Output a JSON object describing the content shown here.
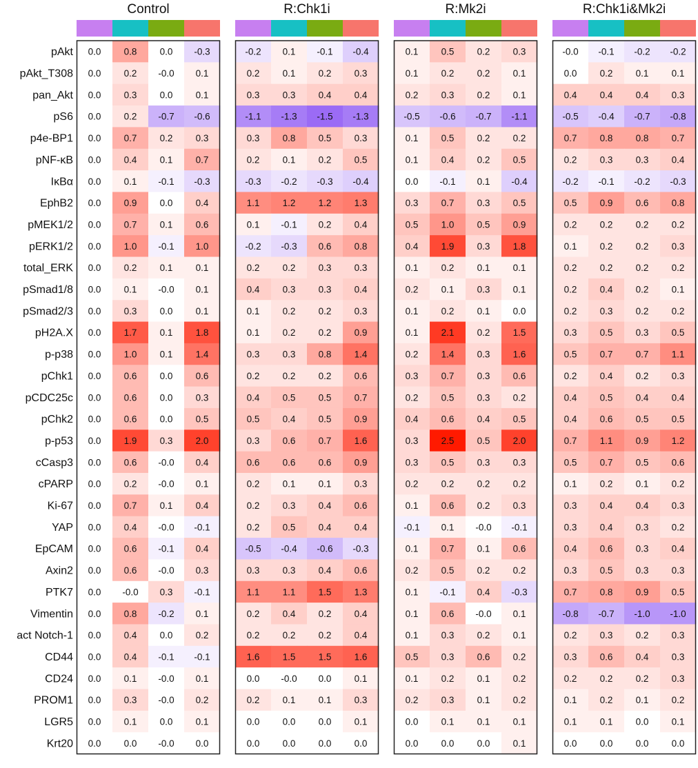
{
  "chart_data": {
    "type": "heatmap",
    "colors": {
      "condition_bar": [
        "#c77ff0",
        "#17c0c4",
        "#7aab12",
        "#f7756c"
      ],
      "negative_max": "#9b6bf5",
      "zero": "#ffffff",
      "positive_max": "#ff1a00",
      "border": "#222222"
    },
    "color_scale": {
      "min": -1.5,
      "max": 2.5
    },
    "rows": [
      "pAkt",
      "pAkt_T308",
      "pan_Akt",
      "pS6",
      "p4e-BP1",
      "pNF-κB",
      "IκBα",
      "EphB2",
      "pMEK1/2",
      "pERK1/2",
      "total_ERK",
      "pSmad1/8",
      "pSmad2/3",
      "pH2A.X",
      "p-p38",
      "pChk1",
      "pCDC25c",
      "pChk2",
      "p-p53",
      "cCasp3",
      "cPARP",
      "Ki-67",
      "YAP",
      "EpCAM",
      "Axin2",
      "PTK7",
      "Vimentin",
      "act Notch-1",
      "CD44",
      "CD24",
      "PROM1",
      "LGR5",
      "Krt20"
    ],
    "panels": [
      {
        "title": "Control",
        "values": [
          [
            "0.0",
            "0.8",
            "0.0",
            "-0.3"
          ],
          [
            "0.0",
            "0.2",
            "-0.0",
            "0.1"
          ],
          [
            "0.0",
            "0.3",
            "0.0",
            "0.1"
          ],
          [
            "0.0",
            "0.2",
            "-0.7",
            "-0.6"
          ],
          [
            "0.0",
            "0.7",
            "0.2",
            "0.3"
          ],
          [
            "0.0",
            "0.4",
            "0.1",
            "0.7"
          ],
          [
            "0.0",
            "0.1",
            "-0.1",
            "-0.3"
          ],
          [
            "0.0",
            "0.9",
            "0.0",
            "0.4"
          ],
          [
            "0.0",
            "0.7",
            "0.1",
            "0.6"
          ],
          [
            "0.0",
            "1.0",
            "-0.1",
            "1.0"
          ],
          [
            "0.0",
            "0.2",
            "0.1",
            "0.1"
          ],
          [
            "0.0",
            "0.1",
            "-0.0",
            "0.1"
          ],
          [
            "0.0",
            "0.3",
            "0.0",
            "0.1"
          ],
          [
            "0.0",
            "1.7",
            "0.1",
            "1.8"
          ],
          [
            "0.0",
            "1.0",
            "0.1",
            "1.4"
          ],
          [
            "0.0",
            "0.6",
            "0.0",
            "0.6"
          ],
          [
            "0.0",
            "0.6",
            "0.0",
            "0.3"
          ],
          [
            "0.0",
            "0.6",
            "0.0",
            "0.5"
          ],
          [
            "0.0",
            "1.9",
            "0.3",
            "2.0"
          ],
          [
            "0.0",
            "0.6",
            "-0.0",
            "0.4"
          ],
          [
            "0.0",
            "0.2",
            "-0.0",
            "0.1"
          ],
          [
            "0.0",
            "0.7",
            "0.1",
            "0.4"
          ],
          [
            "0.0",
            "0.4",
            "-0.0",
            "-0.1"
          ],
          [
            "0.0",
            "0.6",
            "-0.1",
            "0.4"
          ],
          [
            "0.0",
            "0.6",
            "-0.0",
            "0.3"
          ],
          [
            "0.0",
            "-0.0",
            "0.3",
            "-0.1"
          ],
          [
            "0.0",
            "0.8",
            "-0.2",
            "0.1"
          ],
          [
            "0.0",
            "0.4",
            "0.0",
            "0.2"
          ],
          [
            "0.0",
            "0.4",
            "-0.1",
            "-0.1"
          ],
          [
            "0.0",
            "0.1",
            "-0.0",
            "0.1"
          ],
          [
            "0.0",
            "0.3",
            "-0.0",
            "0.2"
          ],
          [
            "0.0",
            "0.1",
            "0.0",
            "0.1"
          ],
          [
            "0.0",
            "0.0",
            "-0.0",
            "0.0"
          ]
        ]
      },
      {
        "title": "R:Chk1i",
        "values": [
          [
            "-0.2",
            "0.1",
            "-0.1",
            "-0.4"
          ],
          [
            "0.2",
            "0.1",
            "0.2",
            "0.3"
          ],
          [
            "0.3",
            "0.3",
            "0.4",
            "0.4"
          ],
          [
            "-1.1",
            "-1.3",
            "-1.5",
            "-1.3"
          ],
          [
            "0.3",
            "0.8",
            "0.5",
            "0.3"
          ],
          [
            "0.2",
            "0.1",
            "0.2",
            "0.5"
          ],
          [
            "-0.3",
            "-0.2",
            "-0.3",
            "-0.4"
          ],
          [
            "1.1",
            "1.2",
            "1.2",
            "1.3"
          ],
          [
            "0.1",
            "-0.1",
            "0.2",
            "0.4"
          ],
          [
            "-0.2",
            "-0.3",
            "0.6",
            "0.8"
          ],
          [
            "0.2",
            "0.2",
            "0.3",
            "0.3"
          ],
          [
            "0.4",
            "0.3",
            "0.3",
            "0.4"
          ],
          [
            "0.1",
            "0.2",
            "0.2",
            "0.3"
          ],
          [
            "0.1",
            "0.2",
            "0.2",
            "0.9"
          ],
          [
            "0.3",
            "0.3",
            "0.8",
            "1.4"
          ],
          [
            "0.2",
            "0.2",
            "0.2",
            "0.6"
          ],
          [
            "0.4",
            "0.5",
            "0.5",
            "0.7"
          ],
          [
            "0.5",
            "0.4",
            "0.5",
            "0.9"
          ],
          [
            "0.3",
            "0.6",
            "0.7",
            "1.6"
          ],
          [
            "0.6",
            "0.6",
            "0.6",
            "0.9"
          ],
          [
            "0.2",
            "0.1",
            "0.1",
            "0.3"
          ],
          [
            "0.2",
            "0.3",
            "0.4",
            "0.6"
          ],
          [
            "0.2",
            "0.5",
            "0.4",
            "0.4"
          ],
          [
            "-0.5",
            "-0.4",
            "-0.6",
            "-0.3"
          ],
          [
            "0.3",
            "0.3",
            "0.4",
            "0.6"
          ],
          [
            "1.1",
            "1.1",
            "1.5",
            "1.3"
          ],
          [
            "0.2",
            "0.4",
            "0.2",
            "0.4"
          ],
          [
            "0.2",
            "0.2",
            "0.2",
            "0.4"
          ],
          [
            "1.6",
            "1.5",
            "1.5",
            "1.6"
          ],
          [
            "0.0",
            "-0.0",
            "0.0",
            "0.1"
          ],
          [
            "0.2",
            "0.1",
            "0.1",
            "0.3"
          ],
          [
            "0.0",
            "0.0",
            "0.0",
            "0.1"
          ],
          [
            "0.0",
            "0.0",
            "0.0",
            "0.0"
          ]
        ]
      },
      {
        "title": "R:Mk2i",
        "values": [
          [
            "0.1",
            "0.5",
            "0.2",
            "0.3"
          ],
          [
            "0.1",
            "0.2",
            "0.2",
            "0.1"
          ],
          [
            "0.2",
            "0.3",
            "0.2",
            "0.1"
          ],
          [
            "-0.5",
            "-0.6",
            "-0.7",
            "-1.1"
          ],
          [
            "0.1",
            "0.5",
            "0.2",
            "0.2"
          ],
          [
            "0.1",
            "0.4",
            "0.2",
            "0.5"
          ],
          [
            "0.0",
            "-0.1",
            "0.1",
            "-0.4"
          ],
          [
            "0.3",
            "0.7",
            "0.3",
            "0.5"
          ],
          [
            "0.5",
            "1.0",
            "0.5",
            "0.9"
          ],
          [
            "0.4",
            "1.9",
            "0.3",
            "1.8"
          ],
          [
            "0.1",
            "0.2",
            "0.1",
            "0.1"
          ],
          [
            "0.2",
            "0.1",
            "0.3",
            "0.1"
          ],
          [
            "0.1",
            "0.2",
            "0.1",
            "0.0"
          ],
          [
            "0.1",
            "2.1",
            "0.2",
            "1.5"
          ],
          [
            "0.2",
            "1.4",
            "0.3",
            "1.6"
          ],
          [
            "0.3",
            "0.7",
            "0.3",
            "0.6"
          ],
          [
            "0.2",
            "0.5",
            "0.3",
            "0.2"
          ],
          [
            "0.4",
            "0.6",
            "0.4",
            "0.5"
          ],
          [
            "0.3",
            "2.5",
            "0.5",
            "2.0"
          ],
          [
            "0.3",
            "0.5",
            "0.3",
            "0.3"
          ],
          [
            "0.2",
            "0.2",
            "0.2",
            "0.2"
          ],
          [
            "0.1",
            "0.6",
            "0.2",
            "0.3"
          ],
          [
            "-0.1",
            "0.1",
            "-0.0",
            "-0.1"
          ],
          [
            "0.1",
            "0.7",
            "0.1",
            "0.6"
          ],
          [
            "0.2",
            "0.5",
            "0.2",
            "0.2"
          ],
          [
            "0.1",
            "-0.1",
            "0.4",
            "-0.3"
          ],
          [
            "0.1",
            "0.6",
            "-0.0",
            "0.1"
          ],
          [
            "0.1",
            "0.3",
            "0.2",
            "0.1"
          ],
          [
            "0.5",
            "0.3",
            "0.6",
            "0.2"
          ],
          [
            "0.1",
            "0.2",
            "0.1",
            "0.2"
          ],
          [
            "0.2",
            "0.3",
            "0.1",
            "0.2"
          ],
          [
            "0.0",
            "0.1",
            "0.1",
            "0.1"
          ],
          [
            "0.0",
            "0.0",
            "0.0",
            "0.1"
          ]
        ]
      },
      {
        "title": "R:Chk1i&Mk2i",
        "values": [
          [
            "-0.0",
            "-0.1",
            "-0.2",
            "-0.2"
          ],
          [
            "0.0",
            "0.2",
            "0.1",
            "0.1"
          ],
          [
            "0.4",
            "0.4",
            "0.4",
            "0.3"
          ],
          [
            "-0.5",
            "-0.4",
            "-0.7",
            "-0.8"
          ],
          [
            "0.7",
            "0.8",
            "0.8",
            "0.7"
          ],
          [
            "0.2",
            "0.3",
            "0.3",
            "0.4"
          ],
          [
            "-0.2",
            "-0.1",
            "-0.2",
            "-0.3"
          ],
          [
            "0.5",
            "0.9",
            "0.6",
            "0.8"
          ],
          [
            "0.2",
            "0.2",
            "0.2",
            "0.2"
          ],
          [
            "0.1",
            "0.2",
            "0.2",
            "0.3"
          ],
          [
            "0.2",
            "0.2",
            "0.2",
            "0.2"
          ],
          [
            "0.2",
            "0.4",
            "0.2",
            "0.1"
          ],
          [
            "0.2",
            "0.3",
            "0.2",
            "0.2"
          ],
          [
            "0.3",
            "0.5",
            "0.3",
            "0.5"
          ],
          [
            "0.5",
            "0.7",
            "0.7",
            "1.1"
          ],
          [
            "0.2",
            "0.4",
            "0.2",
            "0.3"
          ],
          [
            "0.4",
            "0.5",
            "0.4",
            "0.4"
          ],
          [
            "0.4",
            "0.6",
            "0.5",
            "0.5"
          ],
          [
            "0.7",
            "1.1",
            "0.9",
            "1.2"
          ],
          [
            "0.5",
            "0.7",
            "0.5",
            "0.6"
          ],
          [
            "0.1",
            "0.2",
            "0.1",
            "0.2"
          ],
          [
            "0.3",
            "0.4",
            "0.4",
            "0.3"
          ],
          [
            "0.3",
            "0.4",
            "0.3",
            "0.2"
          ],
          [
            "0.4",
            "0.6",
            "0.3",
            "0.4"
          ],
          [
            "0.3",
            "0.5",
            "0.3",
            "0.3"
          ],
          [
            "0.7",
            "0.8",
            "0.9",
            "0.5"
          ],
          [
            "-0.8",
            "-0.7",
            "-1.0",
            "-1.0"
          ],
          [
            "0.2",
            "0.3",
            "0.2",
            "0.3"
          ],
          [
            "0.3",
            "0.6",
            "0.4",
            "0.3"
          ],
          [
            "0.2",
            "0.2",
            "0.2",
            "0.3"
          ],
          [
            "0.1",
            "0.2",
            "0.1",
            "0.2"
          ],
          [
            "0.1",
            "0.1",
            "0.0",
            "0.1"
          ],
          [
            "0.0",
            "0.0",
            "0.0",
            "0.0"
          ]
        ]
      }
    ]
  }
}
